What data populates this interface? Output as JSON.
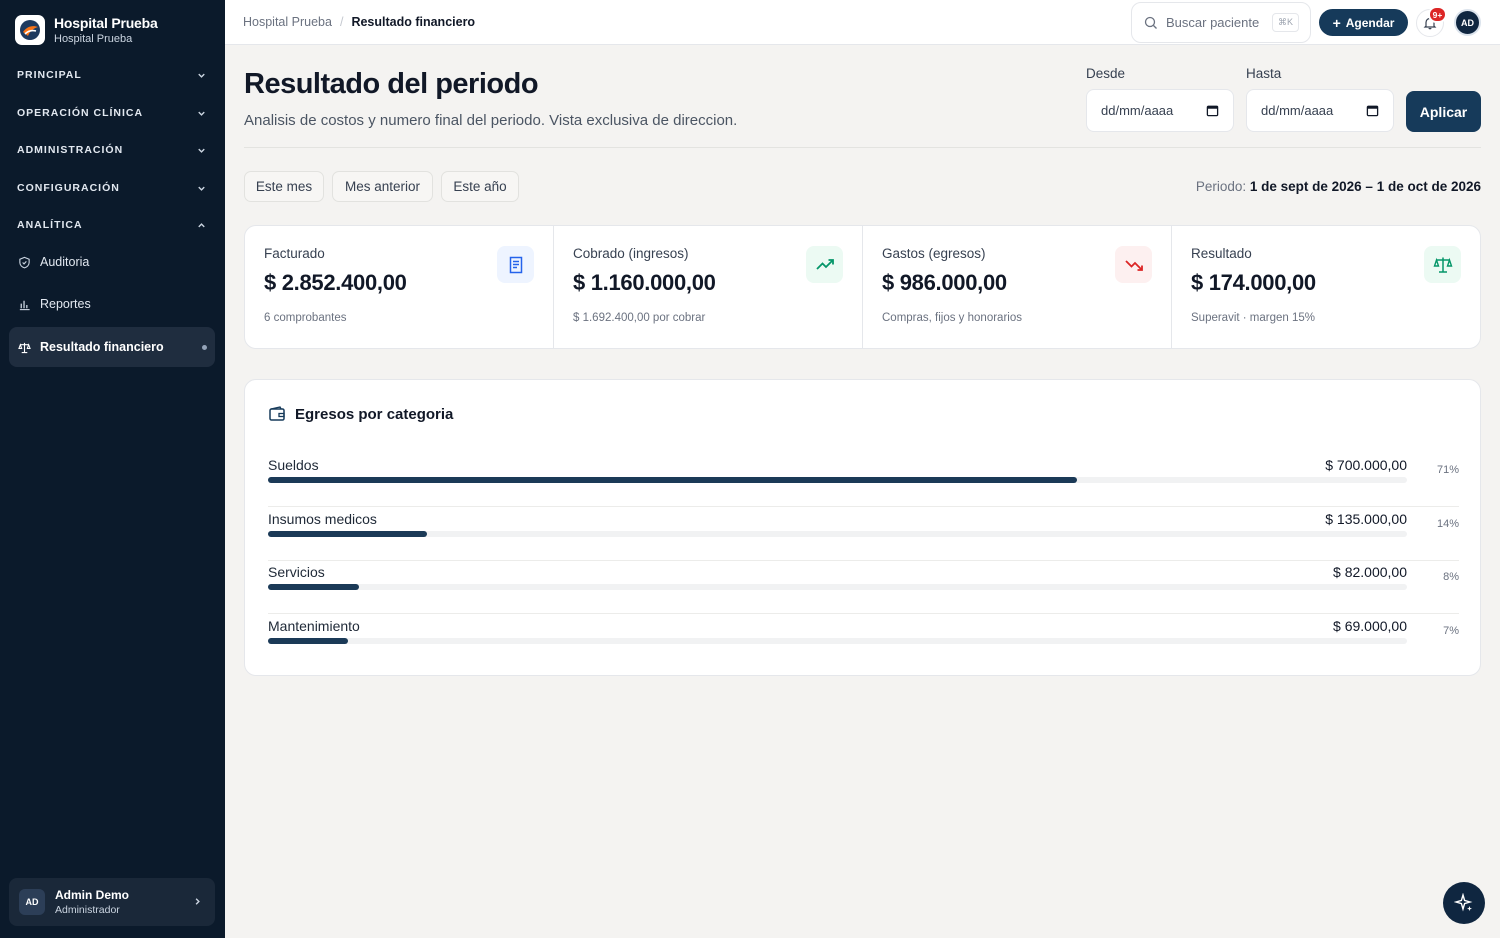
{
  "sidebar": {
    "brand_title": "Hospital Prueba",
    "brand_sub": "Hospital Prueba",
    "sections": [
      {
        "label": "PRINCIPAL",
        "expanded": false
      },
      {
        "label": "OPERACIÓN CLÍNICA",
        "expanded": false
      },
      {
        "label": "ADMINISTRACIÓN",
        "expanded": false
      },
      {
        "label": "CONFIGURACIÓN",
        "expanded": false
      },
      {
        "label": "ANALÍTICA",
        "expanded": true
      }
    ],
    "items": [
      {
        "label": "Auditoria",
        "icon": "shield-icon"
      },
      {
        "label": "Reportes",
        "icon": "bar-chart-icon"
      },
      {
        "label": "Resultado financiero",
        "icon": "scale-icon",
        "active": true
      }
    ],
    "user": {
      "initials": "AD",
      "name": "Admin Demo",
      "role": "Administrador"
    }
  },
  "topbar": {
    "breadcrumb": [
      "Hospital Prueba",
      "Resultado financiero"
    ],
    "search_placeholder": "Buscar paciente",
    "search_shortcut": "⌘K",
    "agendar_label": "Agendar",
    "notif_badge": "9+",
    "avatar_initials": "AD"
  },
  "header": {
    "title": "Resultado del periodo",
    "subtitle": "Analisis de costos y numero final del periodo. Vista exclusiva de direccion.",
    "desde_label": "Desde",
    "hasta_label": "Hasta",
    "desde_placeholder": "dd/mm/aaaa",
    "hasta_placeholder": "dd/mm/aaaa",
    "apply_label": "Aplicar"
  },
  "filters": {
    "chips": [
      "Este mes",
      "Mes anterior",
      "Este año"
    ],
    "periodo_label": "Periodo:",
    "periodo_value": "1 de sept de 2026 – 1 de oct de 2026"
  },
  "kpis": [
    {
      "label": "Facturado",
      "value": "$ 2.852.400,00",
      "note": "6 comprobantes",
      "icon": "receipt-icon",
      "icon_color": "#2563eb",
      "icon_bg": "#eef4ff"
    },
    {
      "label": "Cobrado (ingresos)",
      "value": "$ 1.160.000,00",
      "note": "$ 1.692.400,00 por cobrar",
      "icon": "trending-up-icon",
      "icon_color": "#059669",
      "icon_bg": "#ecfaf3"
    },
    {
      "label": "Gastos (egresos)",
      "value": "$ 986.000,00",
      "note": "Compras, fijos y honorarios",
      "icon": "trending-down-icon",
      "icon_color": "#dc2626",
      "icon_bg": "#fdf0f0"
    },
    {
      "label": "Resultado",
      "value": "$ 174.000,00",
      "note": "Superavit · margen 15%",
      "icon": "scale-icon",
      "icon_color": "#059669",
      "icon_bg": "#ecfaf3"
    }
  ],
  "egresos": {
    "title": "Egresos por categoria",
    "rows": [
      {
        "name": "Sueldos",
        "amount": "$ 700.000,00",
        "pct_label": "71%",
        "pct": 71
      },
      {
        "name": "Insumos medicos",
        "amount": "$ 135.000,00",
        "pct_label": "14%",
        "pct": 14
      },
      {
        "name": "Servicios",
        "amount": "$ 82.000,00",
        "pct_label": "8%",
        "pct": 8
      },
      {
        "name": "Mantenimiento",
        "amount": "$ 69.000,00",
        "pct_label": "7%",
        "pct": 7
      }
    ]
  },
  "colors": {
    "accent": "#163a5a",
    "sidebar_bg": "#0b1a2b",
    "bar_fill": "#1b3a57"
  }
}
